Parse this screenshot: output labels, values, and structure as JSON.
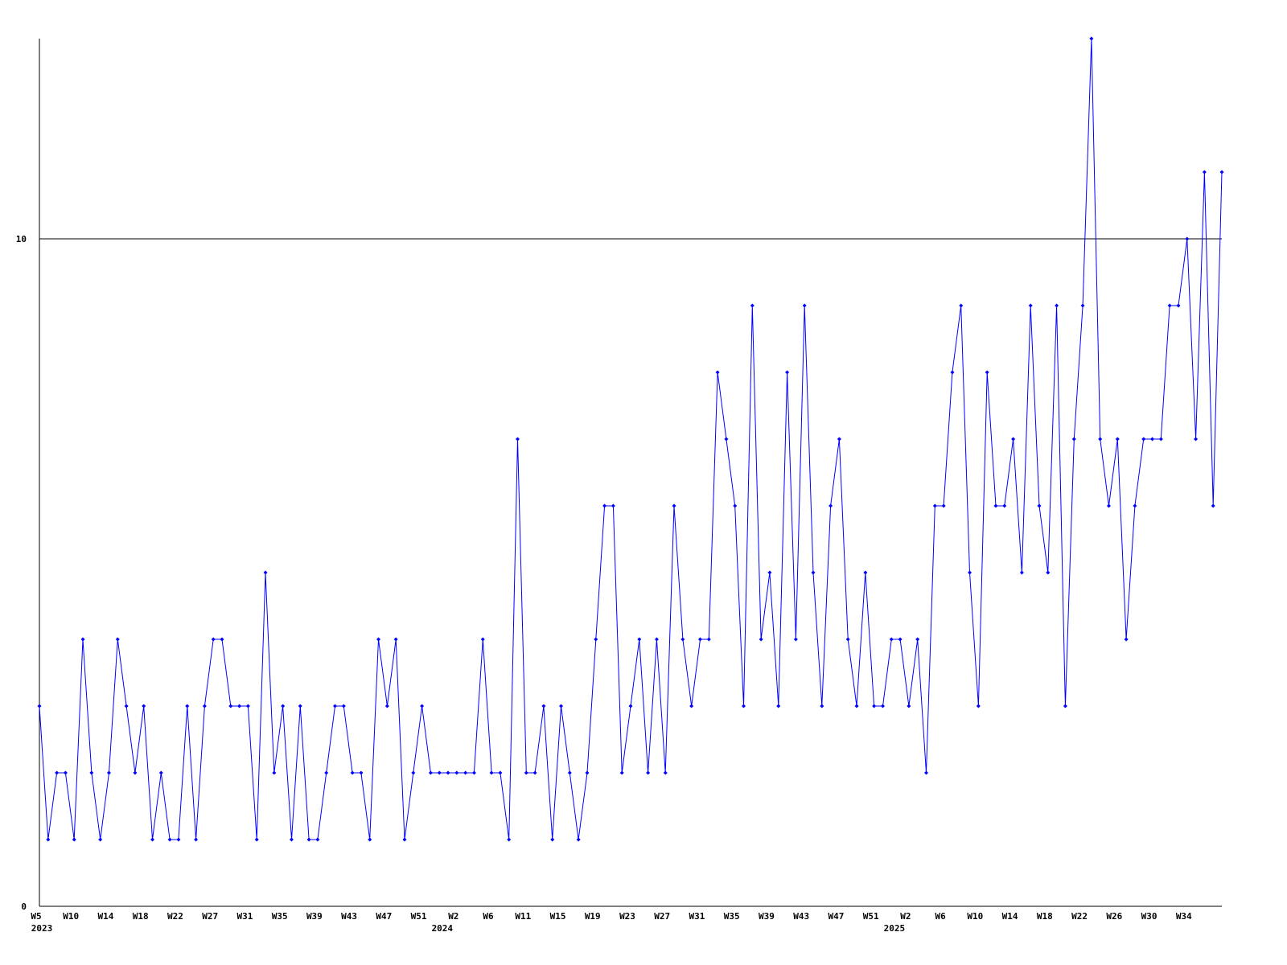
{
  "chart_data": {
    "type": "line",
    "title": "",
    "xlabel": "",
    "ylabel": "",
    "ylim": [
      0,
      13
    ],
    "y_ticks": [
      {
        "value": 0,
        "label": "0"
      },
      {
        "value": 10,
        "label": "10"
      }
    ],
    "grid": "horizontal line at 10",
    "line_color": "#0000ff",
    "axis_color": "#000000",
    "x_tick_labels": [
      {
        "index": 0,
        "label": "W5",
        "year": "2023"
      },
      {
        "index": 4,
        "label": "W10"
      },
      {
        "index": 8,
        "label": "W14"
      },
      {
        "index": 12,
        "label": "W18"
      },
      {
        "index": 16,
        "label": "W22"
      },
      {
        "index": 20,
        "label": "W27"
      },
      {
        "index": 24,
        "label": "W31"
      },
      {
        "index": 28,
        "label": "W35"
      },
      {
        "index": 32,
        "label": "W39"
      },
      {
        "index": 36,
        "label": "W43"
      },
      {
        "index": 40,
        "label": "W47"
      },
      {
        "index": 44,
        "label": "W51"
      },
      {
        "index": 48,
        "label": "W2",
        "year": "2024"
      },
      {
        "index": 52,
        "label": "W6"
      },
      {
        "index": 56,
        "label": "W11"
      },
      {
        "index": 60,
        "label": "W15"
      },
      {
        "index": 64,
        "label": "W19"
      },
      {
        "index": 68,
        "label": "W23"
      },
      {
        "index": 72,
        "label": "W27"
      },
      {
        "index": 76,
        "label": "W31"
      },
      {
        "index": 80,
        "label": "W35"
      },
      {
        "index": 84,
        "label": "W39"
      },
      {
        "index": 88,
        "label": "W43"
      },
      {
        "index": 92,
        "label": "W47"
      },
      {
        "index": 96,
        "label": "W51"
      },
      {
        "index": 100,
        "label": "W2",
        "year": "2025"
      },
      {
        "index": 104,
        "label": "W6"
      },
      {
        "index": 108,
        "label": "W10"
      },
      {
        "index": 112,
        "label": "W14"
      },
      {
        "index": 116,
        "label": "W18"
      },
      {
        "index": 120,
        "label": "W22"
      },
      {
        "index": 124,
        "label": "W26"
      },
      {
        "index": 128,
        "label": "W30"
      },
      {
        "index": 132,
        "label": "W34"
      }
    ],
    "series": [
      {
        "values": [
          3,
          1,
          2,
          2,
          1,
          4,
          2,
          1,
          2,
          4,
          3,
          2,
          3,
          1,
          2,
          1,
          1,
          3,
          1,
          3,
          4,
          4,
          3,
          3,
          3,
          1,
          5,
          2,
          3,
          1,
          3,
          1,
          1,
          2,
          3,
          3,
          2,
          2,
          1,
          4,
          3,
          4,
          1,
          2,
          3,
          2,
          2,
          2,
          2,
          2,
          2,
          4,
          2,
          2,
          1,
          7,
          2,
          2,
          3,
          1,
          3,
          2,
          1,
          2,
          4,
          6,
          6,
          2,
          3,
          4,
          2,
          4,
          2,
          6,
          4,
          3,
          4,
          4,
          8,
          7,
          6,
          3,
          9,
          4,
          5,
          3,
          8,
          4,
          9,
          5,
          3,
          6,
          7,
          4,
          3,
          5,
          3,
          3,
          4,
          4,
          3,
          4,
          2,
          6,
          6,
          8,
          9,
          5,
          3,
          8,
          6,
          6,
          7,
          5,
          9,
          6,
          5,
          9,
          3,
          7,
          9,
          13,
          7,
          6,
          7,
          4,
          6,
          7,
          7,
          7,
          9,
          9,
          10,
          7,
          11,
          6,
          11
        ]
      }
    ]
  }
}
